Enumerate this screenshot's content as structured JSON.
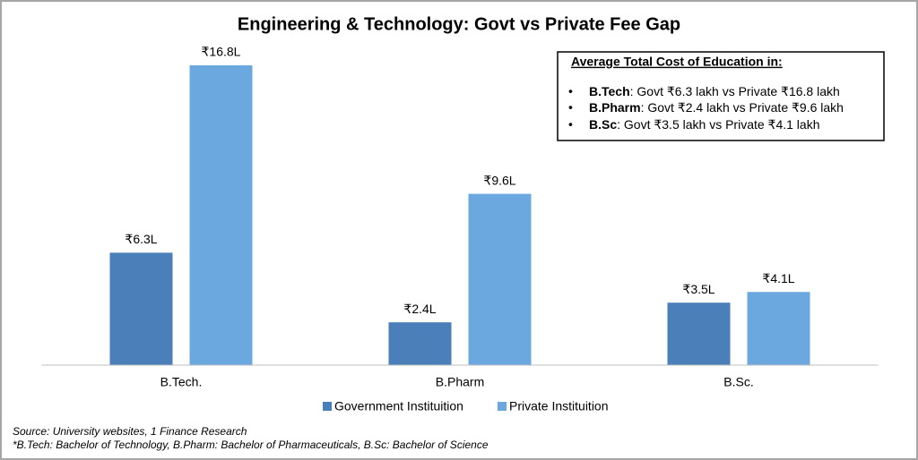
{
  "chart_data": {
    "type": "bar",
    "title": "Engineering & Technology: Govt vs Private Fee Gap",
    "categories": [
      "B.Tech.",
      "B.Pharm",
      "B.Sc."
    ],
    "series": [
      {
        "name": "Government Instituition",
        "color": "#4a7fb9",
        "values": [
          6.3,
          2.4,
          3.5
        ],
        "value_labels": [
          "₹6.3L",
          "₹2.4L",
          "₹3.5L"
        ]
      },
      {
        "name": "Private Instituition",
        "color": "#6ca8e0",
        "values": [
          16.8,
          9.6,
          4.1
        ],
        "value_labels": [
          "₹16.8L",
          "₹9.6L",
          "₹4.1L"
        ]
      }
    ],
    "legend": "bottom",
    "grid": false,
    "annotation_box": {
      "title": "Average Total Cost of Education in:",
      "items": [
        {
          "bold": "B.Tech",
          "text": ": Govt ₹6.3 lakh vs Private ₹16.8 lakh"
        },
        {
          "bold": "B.Pharm",
          "text": ": Govt ₹2.4 lakh vs Private ₹9.6 lakh"
        },
        {
          "bold": "B.Sc",
          "text": ": Govt ₹3.5 lakh vs Private ₹4.1 lakh"
        }
      ]
    },
    "notes": [
      "Source: University websites, 1 Finance Research",
      "*B.Tech: Bachelor of Technology, B.Pharm: Bachelor of Pharmaceuticals, B.Sc: Bachelor of Science"
    ]
  }
}
